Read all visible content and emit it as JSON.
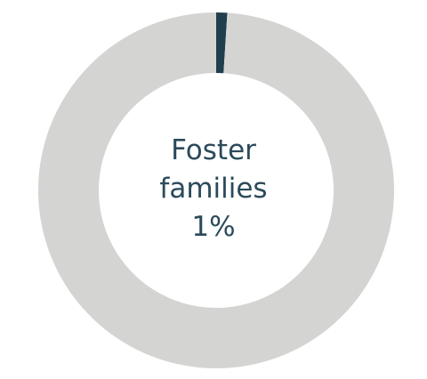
{
  "chart_data": {
    "type": "pie",
    "slices": [
      {
        "label": "Foster families",
        "value": 1,
        "color": "#1f3f4f"
      },
      {
        "label": "",
        "value": 99,
        "color": "#d4d5d3"
      }
    ],
    "center_text": {
      "line1": "Foster",
      "line2": "families",
      "line3": "1%"
    }
  }
}
